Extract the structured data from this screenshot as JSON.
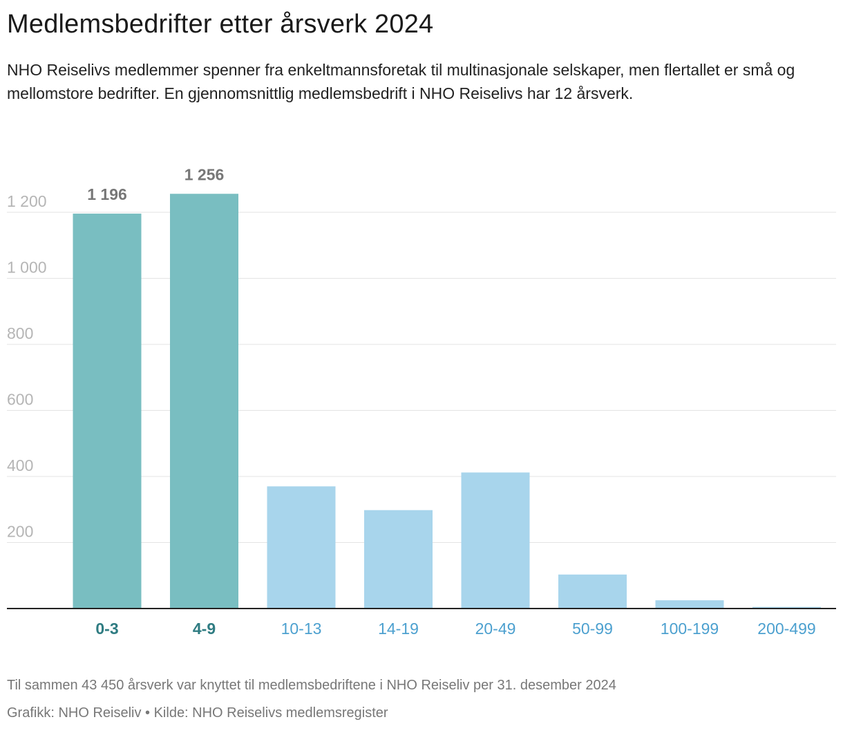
{
  "header": {
    "title": "Medlemsbedrifter etter årsverk 2024",
    "subtitle": "NHO Reiselivs medlemmer spenner fra enkeltmannsforetak til multinasjonale selskaper, men flertallet er små og mellomstore bedrifter. En gjennomsnittlig medlemsbedrift i NHO Reiselivs har 12 årsverk."
  },
  "footer": {
    "note": "Til sammen 43 450 årsverk var knyttet til medlemsbedriftene i NHO Reiseliv per 31. desember 2024",
    "credit": "Grafikk: NHO Reiseliv • Kilde: NHO Reiselivs medlemsregister"
  },
  "chart_data": {
    "type": "bar",
    "title": "Medlemsbedrifter etter årsverk 2024",
    "xlabel": "",
    "ylabel": "",
    "categories": [
      "0-3",
      "4-9",
      "10-13",
      "14-19",
      "20-49",
      "50-99",
      "100-199",
      "200-499"
    ],
    "values": [
      1196,
      1256,
      370,
      298,
      412,
      103,
      25,
      5
    ],
    "data_labels": [
      "1 196",
      "1 256",
      "",
      "",
      "",
      "",
      "",
      ""
    ],
    "highlighted": [
      true,
      true,
      false,
      false,
      false,
      false,
      false,
      false
    ],
    "ylim": [
      0,
      1200
    ],
    "yticks": [
      200,
      400,
      600,
      800,
      1000,
      1200
    ],
    "ytick_labels": [
      "200",
      "400",
      "600",
      "800",
      "1 000",
      "1 200"
    ],
    "grid": true,
    "colors": {
      "highlight_bar": "#79bec1",
      "normal_bar": "#a8d5ec",
      "highlight_label": "#2f7c82",
      "normal_label": "#4ca0cf",
      "data_label": "#777777",
      "tick_label": "#b5b5b5",
      "grid": "#e3e3e3",
      "axis": "#222222"
    }
  }
}
